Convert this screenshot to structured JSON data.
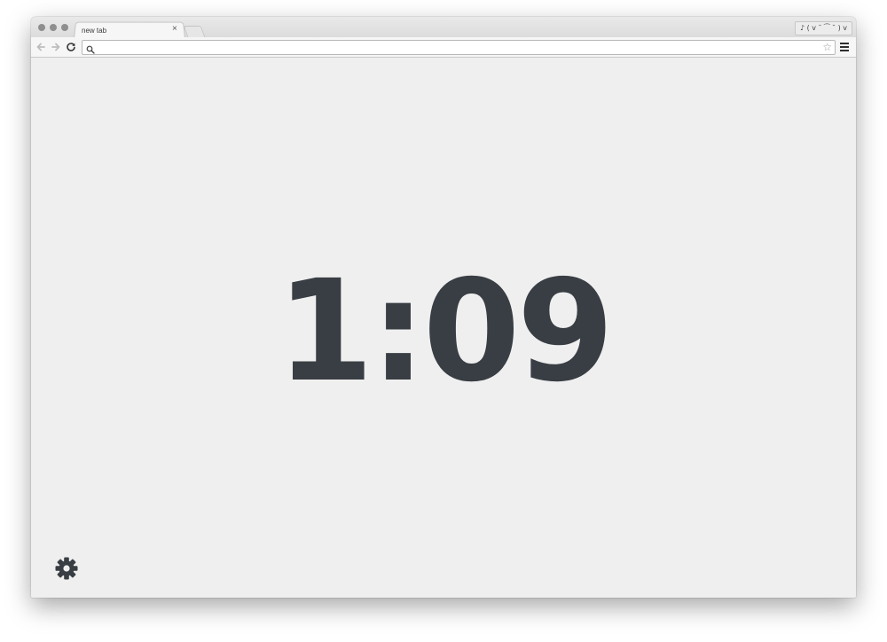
{
  "browser": {
    "tab": {
      "label": "new tab",
      "close_symbol": "×"
    },
    "profile_label": "♪ ( v ˘ ⁀ ˘ ) v",
    "address_bar": {
      "value": "",
      "placeholder": ""
    },
    "icons": {
      "back": "back-arrow-icon",
      "forward": "forward-arrow-icon",
      "reload": "reload-icon",
      "search": "search-icon",
      "bookmark": "star-icon",
      "menu": "hamburger-menu-icon"
    }
  },
  "page": {
    "clock_time": "1:09",
    "settings_icon": "gear-icon"
  },
  "colors": {
    "clock_text": "#393e44",
    "page_background": "#efefef"
  }
}
